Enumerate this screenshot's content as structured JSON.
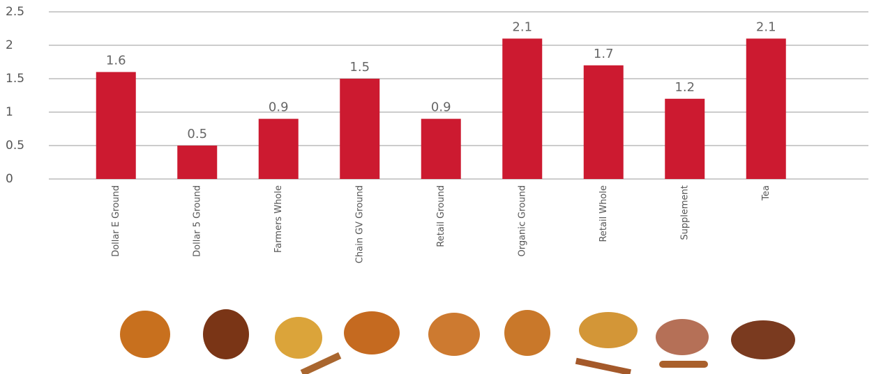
{
  "chart_data": {
    "type": "bar",
    "categories": [
      "Dollar E Ground",
      "Dollar 5 Ground",
      "Farmers Whole",
      "Chain GV Ground",
      "Retail Ground",
      "Organic Ground",
      "Retail Whole",
      "Supplement",
      "Tea"
    ],
    "values": [
      1.6,
      0.5,
      0.9,
      1.5,
      0.9,
      2.1,
      1.7,
      1.2,
      2.1
    ],
    "color": "#cc1a30",
    "ylim": [
      0,
      2.5
    ],
    "yticks": [
      0,
      0.5,
      1,
      1.5,
      2,
      2.5
    ],
    "grid": true
  }
}
